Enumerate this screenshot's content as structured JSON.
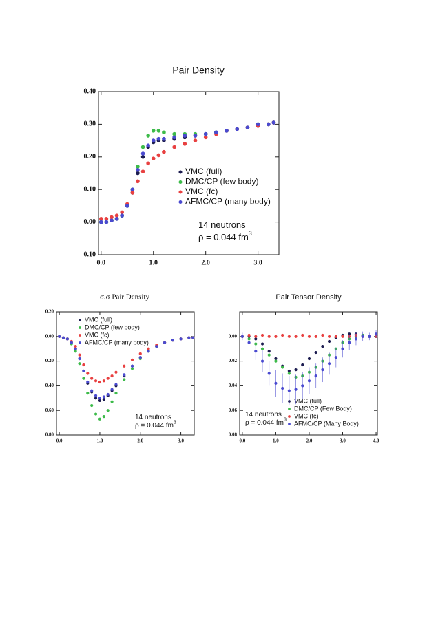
{
  "chart_data": [
    {
      "type": "scatter",
      "title": "Pair Density",
      "xlim": [
        -0.05,
        3.4
      ],
      "ylim": [
        -0.1,
        0.4
      ],
      "xticks": [
        {
          "value": 0,
          "label": "0.0"
        },
        {
          "value": 1,
          "label": "1.0"
        },
        {
          "value": 2,
          "label": "2.0"
        },
        {
          "value": 3,
          "label": "3.0"
        }
      ],
      "yticks": [
        {
          "value": 0.4,
          "label": "0.40"
        },
        {
          "value": 0.3,
          "label": "0.30"
        },
        {
          "value": 0.2,
          "label": "0.20"
        },
        {
          "value": 0.1,
          "label": "0.10"
        },
        {
          "value": 0,
          "label": "0.00"
        },
        {
          "value": -0.1,
          "label": "0.10"
        }
      ],
      "legend": "center-right",
      "annotations": [
        {
          "text": "14 neutrons"
        },
        {
          "text": "ρ = 0.044 fm",
          "superscript": "3"
        }
      ],
      "series": [
        {
          "name": "VMC (full)",
          "color": "#1c1c50",
          "x": [
            0,
            0.1,
            0.2,
            0.3,
            0.4,
            0.5,
            0.6,
            0.7,
            0.8,
            0.9,
            1.0,
            1.1,
            1.2,
            1.4,
            1.6,
            1.8,
            2.0,
            2.2,
            2.4,
            2.6,
            2.8,
            3.0,
            3.2,
            3.3
          ],
          "values": [
            0,
            0,
            0.005,
            0.01,
            0.02,
            0.05,
            0.09,
            0.15,
            0.2,
            0.23,
            0.245,
            0.25,
            0.25,
            0.255,
            0.26,
            0.265,
            0.27,
            0.275,
            0.28,
            0.285,
            0.29,
            0.295,
            0.3,
            0.305
          ]
        },
        {
          "name": "DMC/CP (few body)",
          "color": "#3dbb4a",
          "x": [
            0,
            0.1,
            0.2,
            0.3,
            0.4,
            0.5,
            0.6,
            0.7,
            0.8,
            0.9,
            1.0,
            1.1,
            1.2,
            1.4,
            1.6,
            1.8,
            2.0,
            2.2,
            2.4,
            2.6,
            2.8,
            3.0,
            3.2,
            3.3
          ],
          "values": [
            0,
            0,
            0.005,
            0.01,
            0.02,
            0.05,
            0.1,
            0.17,
            0.23,
            0.265,
            0.28,
            0.28,
            0.275,
            0.27,
            0.27,
            0.27,
            0.27,
            0.275,
            0.28,
            0.285,
            0.29,
            0.3,
            0.3,
            0.305
          ]
        },
        {
          "name": "VMC (fc)",
          "color": "#e84040",
          "x": [
            0,
            0.1,
            0.2,
            0.3,
            0.4,
            0.5,
            0.6,
            0.7,
            0.8,
            0.9,
            1.0,
            1.1,
            1.2,
            1.4,
            1.6,
            1.8,
            2.0,
            2.2,
            2.4,
            2.6,
            2.8,
            3.0,
            3.2,
            3.3
          ],
          "values": [
            0.01,
            0.01,
            0.015,
            0.02,
            0.03,
            0.055,
            0.09,
            0.125,
            0.155,
            0.18,
            0.195,
            0.205,
            0.215,
            0.23,
            0.24,
            0.25,
            0.26,
            0.27,
            0.28,
            0.285,
            0.29,
            0.295,
            0.3,
            0.305
          ]
        },
        {
          "name": "AFMC/CP (many body)",
          "color": "#4a4ad0",
          "x": [
            0,
            0.1,
            0.2,
            0.3,
            0.4,
            0.5,
            0.6,
            0.7,
            0.8,
            0.9,
            1.0,
            1.1,
            1.2,
            1.4,
            1.6,
            1.8,
            2.0,
            2.2,
            2.4,
            2.6,
            2.8,
            3.0,
            3.2,
            3.3
          ],
          "values": [
            0,
            0,
            0.005,
            0.01,
            0.02,
            0.05,
            0.1,
            0.16,
            0.21,
            0.235,
            0.25,
            0.255,
            0.255,
            0.26,
            0.265,
            0.265,
            0.27,
            0.275,
            0.28,
            0.285,
            0.29,
            0.3,
            0.3,
            0.305
          ]
        }
      ]
    },
    {
      "type": "scatter",
      "title": "σ.σ Pair Density",
      "xlim": [
        -0.07,
        3.33
      ],
      "ylim": [
        -0.8,
        0.2
      ],
      "xticks": [
        {
          "value": 0,
          "label": "0.0"
        },
        {
          "value": 1,
          "label": "1.0"
        },
        {
          "value": 2,
          "label": "2.0"
        },
        {
          "value": 3,
          "label": "3.0"
        }
      ],
      "yticks": [
        {
          "value": 0.2,
          "label": "0.20"
        },
        {
          "value": 0,
          "label": "0.00"
        },
        {
          "value": -0.2,
          "label": "0.20"
        },
        {
          "value": -0.4,
          "label": "0.40"
        },
        {
          "value": -0.6,
          "label": "0.60"
        },
        {
          "value": -0.8,
          "label": "0.80"
        }
      ],
      "legend": "upper-left",
      "annotations": [
        {
          "text": "14 neutrons"
        },
        {
          "text": "ρ = 0.044 fm",
          "superscript": "3"
        }
      ],
      "series": [
        {
          "name": "VMC (full)",
          "color": "#1c1c50",
          "x": [
            0,
            0.1,
            0.2,
            0.3,
            0.4,
            0.5,
            0.6,
            0.7,
            0.8,
            0.9,
            1.0,
            1.1,
            1.2,
            1.3,
            1.4,
            1.6,
            1.8,
            2.0,
            2.2,
            2.4,
            2.6,
            2.8,
            3.0,
            3.2,
            3.3
          ],
          "values": [
            0,
            -0.01,
            -0.02,
            -0.05,
            -0.1,
            -0.18,
            -0.28,
            -0.38,
            -0.45,
            -0.5,
            -0.52,
            -0.51,
            -0.48,
            -0.44,
            -0.4,
            -0.32,
            -0.24,
            -0.17,
            -0.12,
            -0.08,
            -0.05,
            -0.03,
            -0.02,
            -0.01,
            -0.01
          ]
        },
        {
          "name": "DMC/CP (few body)",
          "color": "#3dbb4a",
          "x": [
            0,
            0.1,
            0.2,
            0.3,
            0.4,
            0.5,
            0.6,
            0.7,
            0.8,
            0.9,
            1.0,
            1.1,
            1.2,
            1.3,
            1.4,
            1.6,
            1.8,
            2.0,
            2.2,
            2.4,
            2.6,
            2.8,
            3.0,
            3.2,
            3.3
          ],
          "values": [
            0,
            -0.01,
            -0.02,
            -0.06,
            -0.12,
            -0.22,
            -0.34,
            -0.46,
            -0.56,
            -0.63,
            -0.67,
            -0.65,
            -0.6,
            -0.53,
            -0.46,
            -0.35,
            -0.26,
            -0.18,
            -0.12,
            -0.08,
            -0.05,
            -0.03,
            -0.02,
            -0.01,
            -0.01
          ]
        },
        {
          "name": "VMC (fc)",
          "color": "#e84040",
          "x": [
            0,
            0.1,
            0.2,
            0.3,
            0.4,
            0.5,
            0.6,
            0.7,
            0.8,
            0.9,
            1.0,
            1.1,
            1.2,
            1.3,
            1.4,
            1.6,
            1.8,
            2.0,
            2.2,
            2.4,
            2.6,
            2.8,
            3.0,
            3.2,
            3.3
          ],
          "values": [
            0,
            -0.01,
            -0.02,
            -0.04,
            -0.08,
            -0.15,
            -0.23,
            -0.3,
            -0.34,
            -0.36,
            -0.37,
            -0.36,
            -0.34,
            -0.32,
            -0.29,
            -0.24,
            -0.19,
            -0.14,
            -0.1,
            -0.07,
            -0.05,
            -0.03,
            -0.02,
            -0.01,
            -0.01
          ]
        },
        {
          "name": "AFMC/CP (many body)",
          "color": "#4a4ad0",
          "x": [
            0,
            0.1,
            0.2,
            0.3,
            0.4,
            0.5,
            0.6,
            0.7,
            0.8,
            0.9,
            1.0,
            1.1,
            1.2,
            1.3,
            1.4,
            1.6,
            1.8,
            2.0,
            2.2,
            2.4,
            2.6,
            2.8,
            3.0,
            3.2,
            3.3
          ],
          "values": [
            0,
            -0.01,
            -0.02,
            -0.05,
            -0.1,
            -0.18,
            -0.28,
            -0.37,
            -0.44,
            -0.48,
            -0.5,
            -0.49,
            -0.47,
            -0.43,
            -0.39,
            -0.31,
            -0.24,
            -0.17,
            -0.12,
            -0.08,
            -0.05,
            -0.03,
            -0.02,
            -0.01,
            -0.01
          ]
        }
      ]
    },
    {
      "type": "scatter",
      "title": "Pair Tensor Density",
      "xlim": [
        -0.08,
        4.04
      ],
      "ylim": [
        -0.08,
        0.02
      ],
      "xticks": [
        {
          "value": 0,
          "label": "0.0"
        },
        {
          "value": 1,
          "label": "1.0"
        },
        {
          "value": 2,
          "label": "2.0"
        },
        {
          "value": 3,
          "label": "3.0"
        },
        {
          "value": 4,
          "label": "4.0"
        }
      ],
      "yticks": [
        {
          "value": 0,
          "label": "0.00"
        },
        {
          "value": -0.02,
          "label": "0.02"
        },
        {
          "value": -0.04,
          "label": "0.04"
        },
        {
          "value": -0.06,
          "label": "0.06"
        },
        {
          "value": -0.08,
          "label": "0.08"
        }
      ],
      "legend": "lower-right",
      "annotations": [
        {
          "text": "14 neutrons"
        },
        {
          "text": "ρ = 0.044 fm",
          "superscript": "3"
        }
      ],
      "series": [
        {
          "name": "VMC (full)",
          "color": "#1c1c50",
          "x": [
            0,
            0.2,
            0.4,
            0.6,
            0.8,
            1.0,
            1.2,
            1.4,
            1.6,
            1.8,
            2.0,
            2.2,
            2.4,
            2.6,
            2.8,
            3.0,
            3.2,
            3.4,
            3.6,
            3.8,
            4.0
          ],
          "values": [
            0,
            0,
            -0.002,
            -0.006,
            -0.012,
            -0.018,
            -0.024,
            -0.028,
            -0.027,
            -0.023,
            -0.018,
            -0.013,
            -0.008,
            -0.004,
            -0.001,
            0.001,
            0.002,
            0.002,
            0.001,
            0,
            0
          ]
        },
        {
          "name": "DMC/CP (Few Body)",
          "color": "#3dbb4a",
          "x": [
            0,
            0.2,
            0.4,
            0.6,
            0.8,
            1.0,
            1.2,
            1.4,
            1.6,
            1.8,
            2.0,
            2.2,
            2.4,
            2.6,
            2.8,
            3.0,
            3.2,
            3.4,
            3.6,
            3.8,
            4.0
          ],
          "values": [
            0,
            -0.002,
            -0.006,
            -0.01,
            -0.015,
            -0.02,
            -0.025,
            -0.03,
            -0.033,
            -0.032,
            -0.029,
            -0.025,
            -0.02,
            -0.015,
            -0.01,
            -0.005,
            -0.002,
            0,
            0.001,
            0,
            0
          ]
        },
        {
          "name": "VMC (fc)",
          "color": "#e84040",
          "x": [
            0,
            0.2,
            0.4,
            0.6,
            0.8,
            1.0,
            1.2,
            1.4,
            1.6,
            1.8,
            2.0,
            2.2,
            2.4,
            2.6,
            2.8,
            3.0,
            3.2,
            3.4,
            3.6,
            3.8,
            4.0
          ],
          "values": [
            0,
            0.001,
            0,
            0.001,
            0,
            0,
            0.001,
            0,
            0,
            0.001,
            0,
            0,
            0.001,
            0,
            0,
            0,
            0,
            0.001,
            0,
            0,
            0
          ]
        },
        {
          "name": "AFMC/CP (Many Body)",
          "color": "#4a4ad0",
          "x": [
            0,
            0.2,
            0.4,
            0.6,
            0.8,
            1.0,
            1.2,
            1.4,
            1.6,
            1.8,
            2.0,
            2.2,
            2.4,
            2.6,
            2.8,
            3.0,
            3.2,
            3.4,
            3.6,
            3.8,
            4.0
          ],
          "values": [
            0,
            -0.005,
            -0.012,
            -0.02,
            -0.03,
            -0.038,
            -0.042,
            -0.044,
            -0.043,
            -0.04,
            -0.036,
            -0.032,
            -0.027,
            -0.022,
            -0.017,
            -0.01,
            -0.005,
            -0.002,
            0,
            0,
            0.002
          ],
          "errors": [
            0.003,
            0.005,
            0.007,
            0.009,
            0.01,
            0.011,
            0.012,
            0.012,
            0.012,
            0.011,
            0.011,
            0.01,
            0.01,
            0.009,
            0.008,
            0.007,
            0.006,
            0.005,
            0.004,
            0.003,
            0.003
          ]
        }
      ]
    }
  ]
}
